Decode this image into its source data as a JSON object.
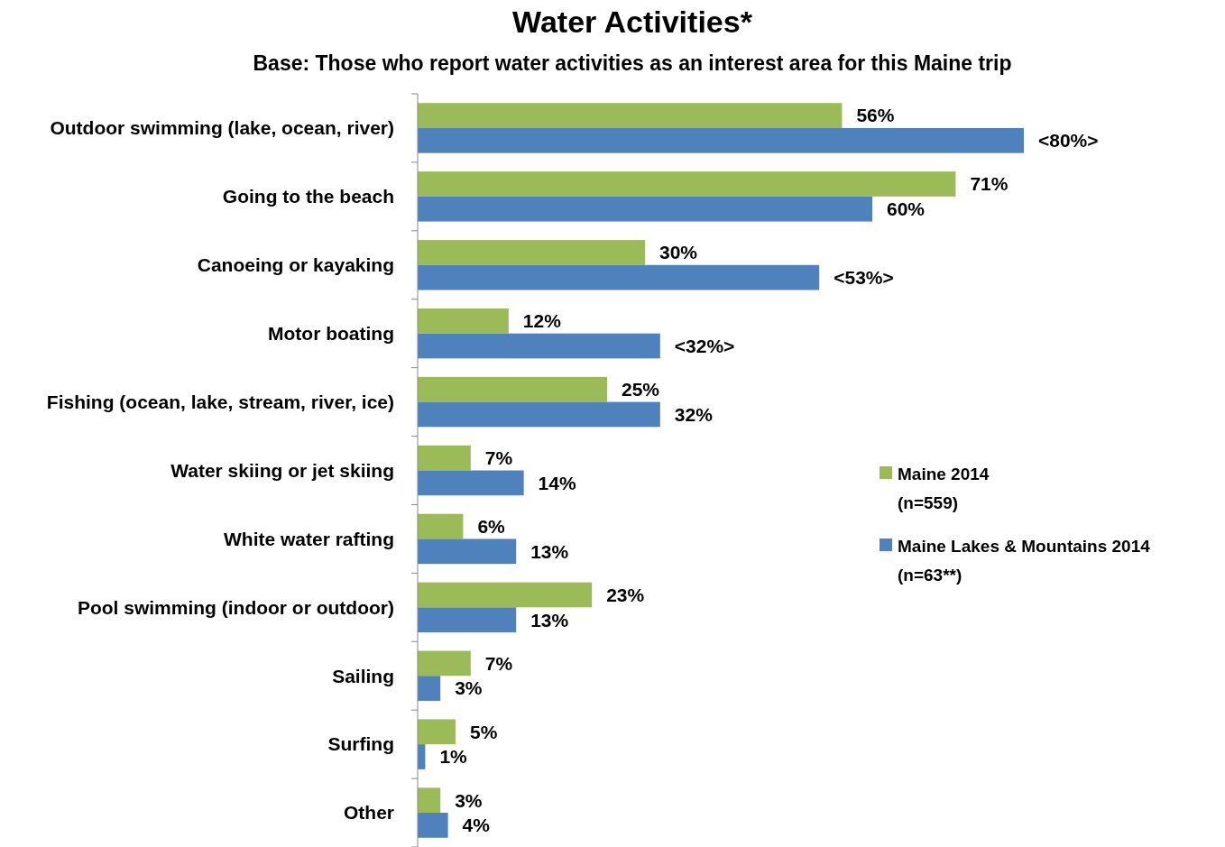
{
  "chart_data": {
    "type": "bar",
    "orientation": "horizontal",
    "title": "Water Activities*",
    "subtitle": "Base: Those who report water activities as an interest area for this Maine trip",
    "categories": [
      "Outdoor swimming (lake, ocean, river)",
      "Going to the beach",
      "Canoeing or kayaking",
      "Motor boating",
      "Fishing (ocean, lake, stream, river, ice)",
      "Water skiing or jet skiing",
      "White water rafting",
      "Pool swimming (indoor or outdoor)",
      "Sailing",
      "Surfing",
      "Other"
    ],
    "series": [
      {
        "name": "Maine 2014 (n=559)",
        "color": "#9bbb59",
        "values": [
          56,
          71,
          30,
          12,
          25,
          7,
          6,
          23,
          7,
          5,
          3
        ],
        "value_labels": [
          "56%",
          "71%",
          "30%",
          "12%",
          "25%",
          "7%",
          "6%",
          "23%",
          "7%",
          "5%",
          "3%"
        ]
      },
      {
        "name": "Maine Lakes & Mountains 2014 (n=63**)",
        "color": "#4f81bd",
        "values": [
          80,
          60,
          53,
          32,
          32,
          14,
          13,
          13,
          3,
          1,
          4
        ],
        "value_labels": [
          "<80%>",
          "60%",
          "<53%>",
          "<32%>",
          "32%",
          "14%",
          "13%",
          "13%",
          "3%",
          "1%",
          "4%"
        ]
      }
    ],
    "legend": "right"
  }
}
